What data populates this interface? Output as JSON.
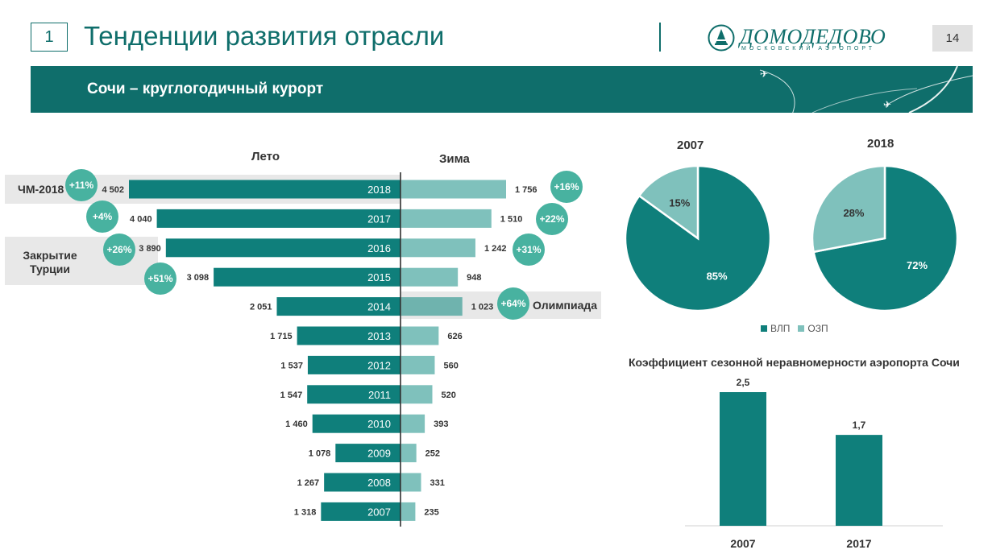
{
  "header": {
    "slide_label": "1",
    "title": "Тенденции развития отрасли",
    "page_number": "14",
    "logo_text": "ДОМОДЕДОВО",
    "logo_subtext": "МОСКОВСКИЙ АЭРОПОРТ"
  },
  "banner": {
    "subtitle": "Сочи – круглогодичный курорт"
  },
  "colors": {
    "primary": "#0f7f7b",
    "light": "#7fc1bc",
    "growth": "#48b2a0",
    "highlight": "#e8e8e8"
  },
  "labels": {
    "summer": "Лето",
    "winter": "Зима",
    "wc2018": "ЧМ-2018",
    "turkey": "Закрытие Турции",
    "olympics": "Олимпиада"
  },
  "chart_data": [
    {
      "type": "bar",
      "orientation": "horizontal-butterfly",
      "categories": [
        "2018",
        "2017",
        "2016",
        "2015",
        "2014",
        "2013",
        "2012",
        "2011",
        "2010",
        "2009",
        "2008",
        "2007"
      ],
      "series": [
        {
          "name": "Лето",
          "values": [
            4502,
            4040,
            3890,
            3098,
            2051,
            1715,
            1537,
            1547,
            1460,
            1078,
            1267,
            1318
          ],
          "labels": [
            "4 502",
            "4 040",
            "3 890",
            "3 098",
            "2 051",
            "1 715",
            "1 537",
            "1 547",
            "1 460",
            "1 078",
            "1 267",
            "1 318"
          ]
        },
        {
          "name": "Зима",
          "values": [
            1756,
            1510,
            1242,
            948,
            1023,
            626,
            560,
            520,
            393,
            252,
            331,
            235
          ],
          "labels": [
            "1 756",
            "1 510",
            "1 242",
            "948",
            "1 023",
            "626",
            "560",
            "520",
            "393",
            "252",
            "331",
            "235"
          ]
        }
      ],
      "growth_summer": [
        {
          "category": "2018",
          "label": "+11%"
        },
        {
          "category": "2017",
          "label": "+4%"
        },
        {
          "category": "2016",
          "label": "+26%"
        },
        {
          "category": "2015",
          "label": "+51%"
        }
      ],
      "growth_winter": [
        {
          "category": "2018",
          "label": "+16%"
        },
        {
          "category": "2017",
          "label": "+22%"
        },
        {
          "category": "2016",
          "label": "+31%"
        },
        {
          "category": "2014",
          "label": "+64%"
        }
      ]
    },
    {
      "type": "pie",
      "title": "2007",
      "slices": [
        {
          "name": "ВЛП",
          "value": 85,
          "label": "85%"
        },
        {
          "name": "ОЗП",
          "value": 15,
          "label": "15%"
        }
      ]
    },
    {
      "type": "pie",
      "title": "2018",
      "slices": [
        {
          "name": "ВЛП",
          "value": 72,
          "label": "72%"
        },
        {
          "name": "ОЗП",
          "value": 28,
          "label": "28%"
        }
      ]
    },
    {
      "type": "bar",
      "title": "Коэффициент сезонной неравномерности аэропорта Сочи",
      "categories": [
        "2007",
        "2017"
      ],
      "values": [
        2.5,
        1.7
      ],
      "labels": [
        "2,5",
        "1,7"
      ]
    }
  ],
  "legend": [
    {
      "name": "ВЛП",
      "color": "#0f7f7b"
    },
    {
      "name": "ОЗП",
      "color": "#7fc1bc"
    }
  ]
}
